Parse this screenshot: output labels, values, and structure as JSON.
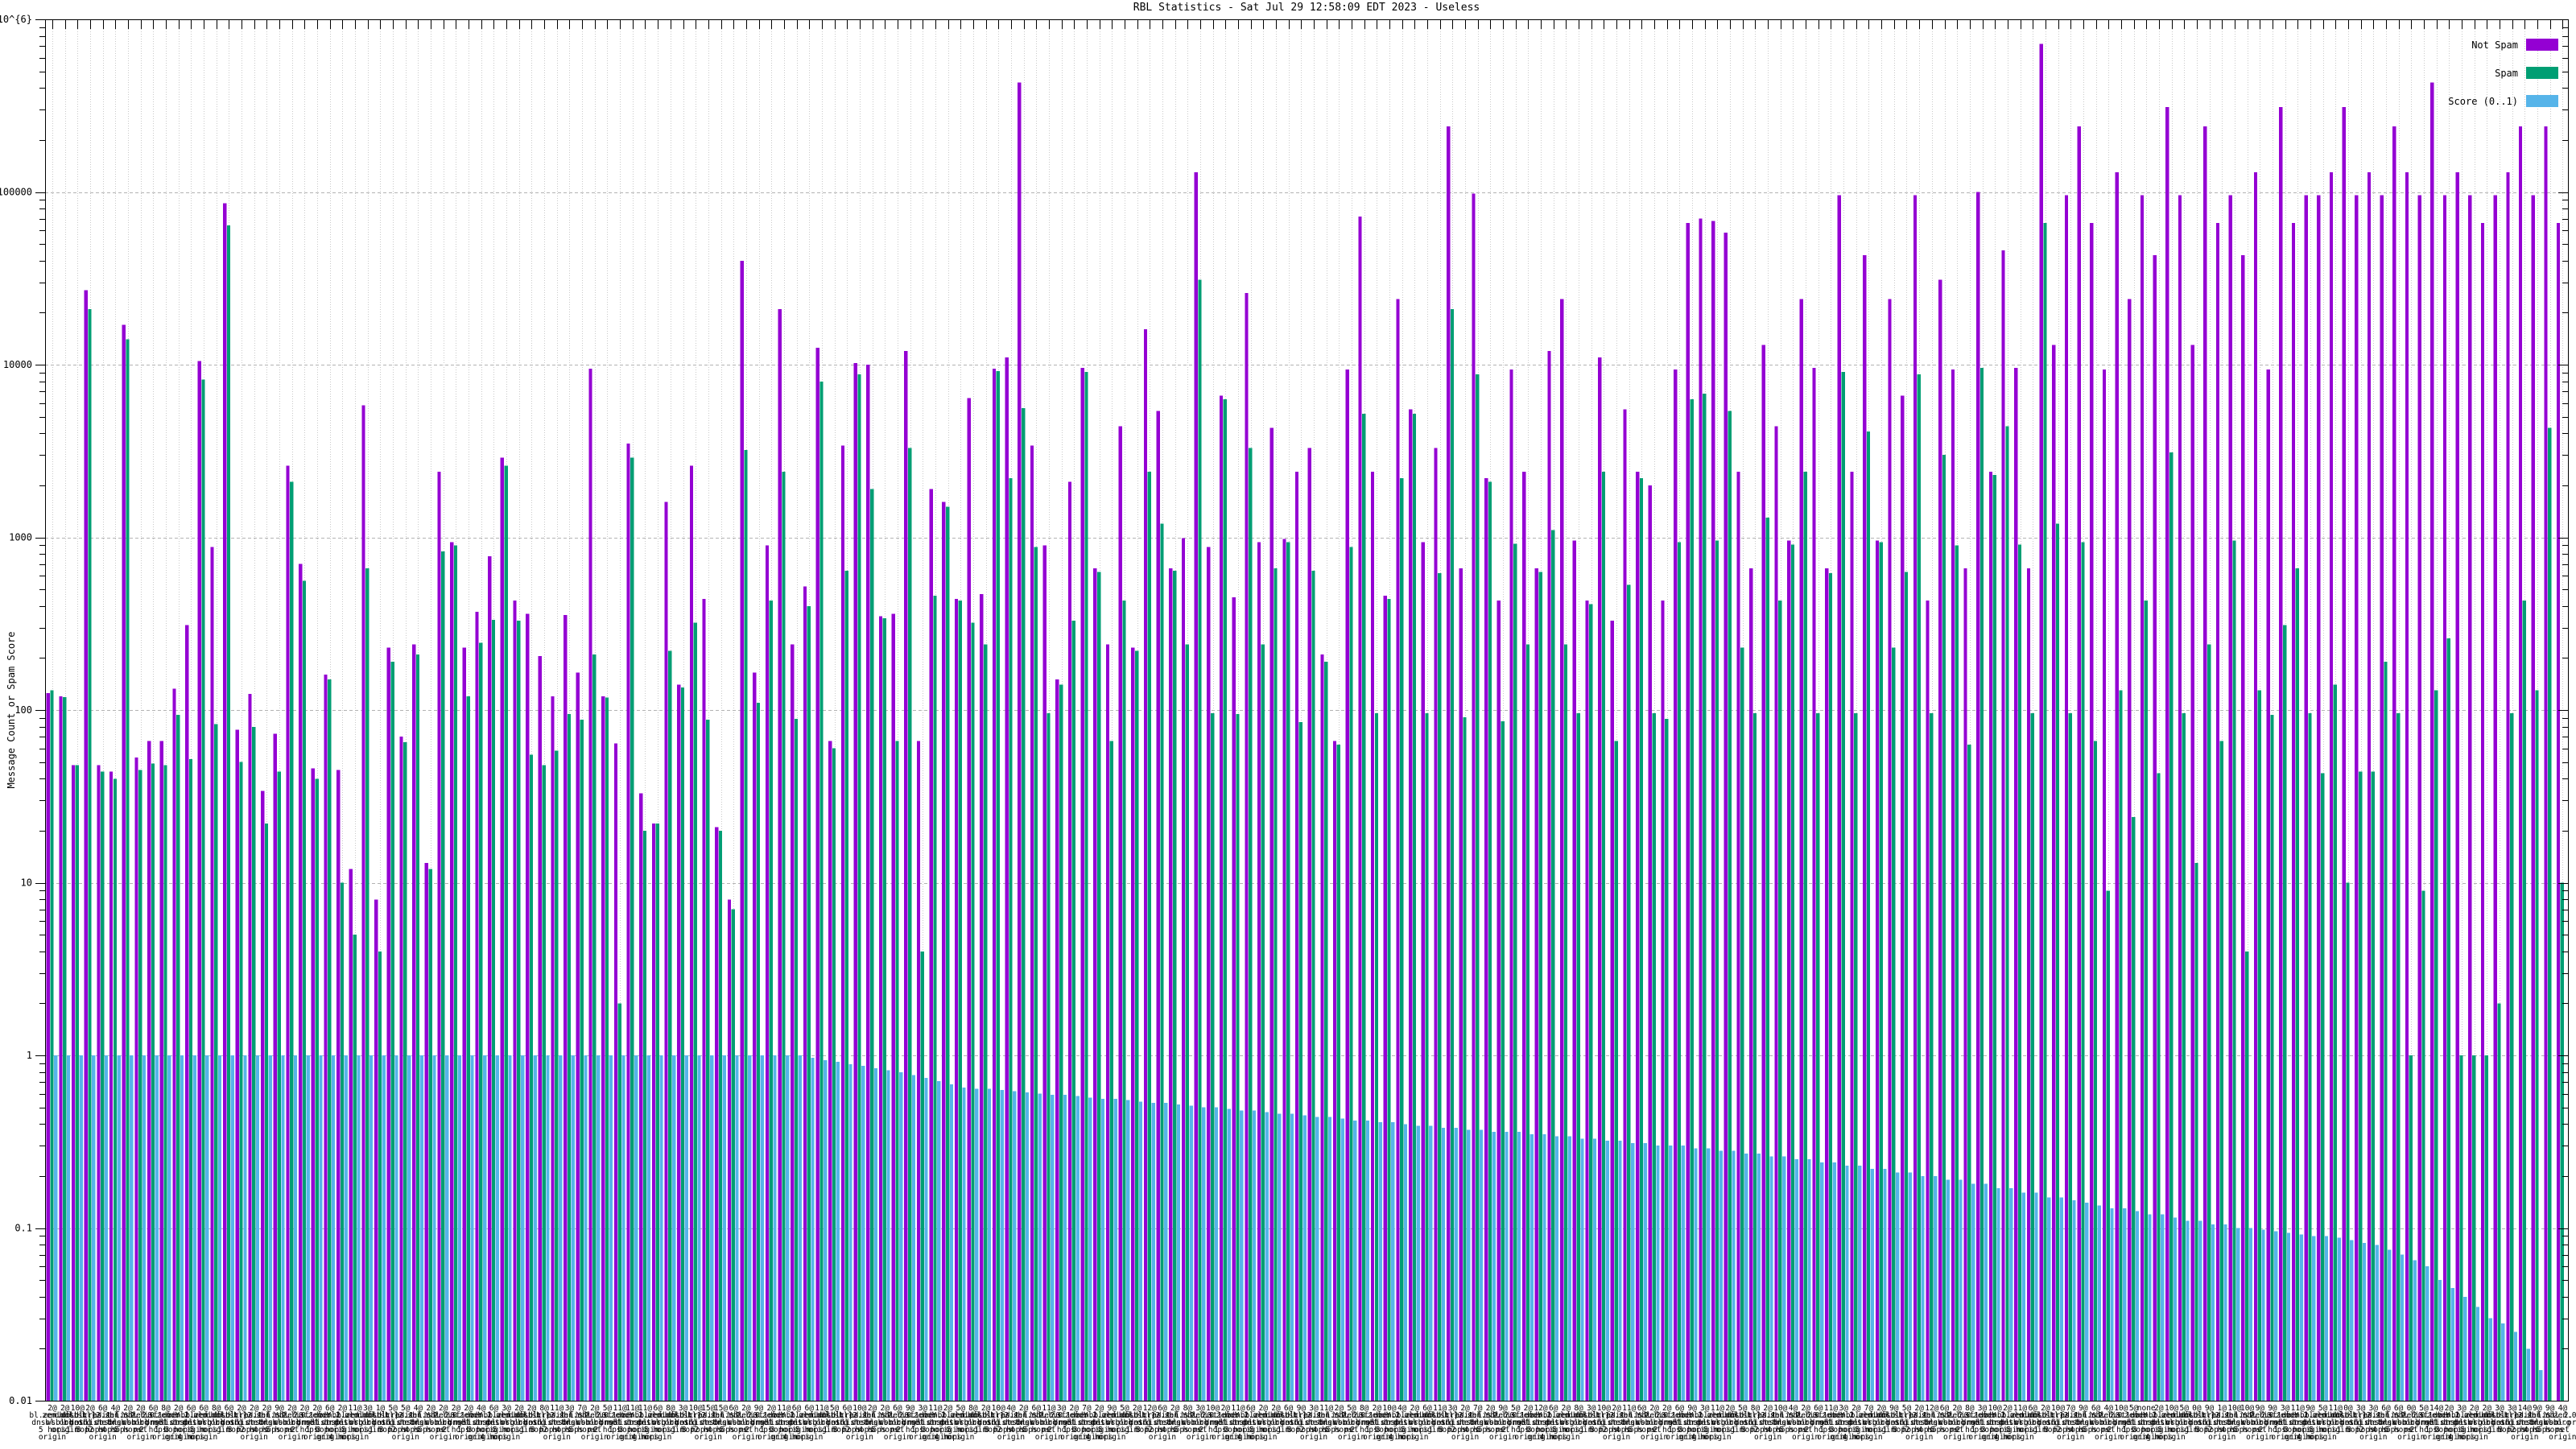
{
  "title": "RBL Statistics - Sat Jul 29 12:58:09 EDT 2023 - Useless",
  "y_axis": {
    "label": "Message Count or Spam Score"
  },
  "legend": {
    "items": [
      {
        "label": "Not Spam",
        "color": "#9400d3"
      },
      {
        "label": "Spam",
        "color": "#009e73"
      },
      {
        "label": "Score (0..1)",
        "color": "#56b4e9"
      }
    ]
  },
  "chart_data": {
    "type": "bar",
    "title": "RBL Statistics - Sat Jul 29 12:58:09 EDT 2023 - Useless",
    "xlabel": "",
    "ylabel": "Message Count or Spam Score",
    "yscale": "log",
    "ylim": [
      0.01,
      1000000
    ],
    "grid": true,
    "legend_position": "top-right inside",
    "y_ticks": [
      {
        "label": "1x10^{6}",
        "value": 1000000
      },
      {
        "label": "100000",
        "value": 100000
      },
      {
        "label": "10000",
        "value": 10000
      },
      {
        "label": "1000",
        "value": 1000
      },
      {
        "label": "100",
        "value": 100
      },
      {
        "label": "10",
        "value": 10
      },
      {
        "label": "1",
        "value": 1
      },
      {
        "label": "0.1",
        "value": 0.1
      },
      {
        "label": "0.01",
        "value": 0.01
      }
    ],
    "series": [
      {
        "name": "Not Spam",
        "color": "#9400d3",
        "values": [
          125,
          120,
          48,
          27000,
          48,
          44,
          17000,
          53,
          66,
          66,
          133,
          310,
          10500,
          880,
          86000,
          77,
          124,
          34,
          73,
          2600,
          700,
          46,
          160,
          45,
          12,
          5800,
          8,
          230,
          70,
          240,
          13,
          2400,
          940,
          230,
          370,
          775,
          2900,
          430,
          360,
          205,
          120,
          355,
          165,
          9500,
          120,
          64,
          3500,
          33,
          22,
          1600,
          140,
          2600,
          440,
          21,
          8,
          40000,
          165,
          900,
          21000,
          240,
          520,
          12500,
          66,
          3400,
          10200,
          10000,
          350,
          360,
          12000,
          66,
          1900,
          1600,
          440,
          6400,
          470,
          9500,
          11000,
          430000,
          3400,
          900,
          150,
          2100,
          9600,
          660,
          240,
          4400,
          230,
          16000,
          5400,
          660,
          990,
          130000,
          880,
          6600,
          450,
          26000,
          940,
          4300,
          980,
          2400,
          3300,
          210,
          66,
          9400,
          72000,
          2400,
          460,
          24000,
          5500,
          940,
          3300,
          240000,
          660,
          98000,
          2200,
          430,
          9400,
          2400,
          660,
          12000,
          24000,
          960,
          430,
          11000,
          330,
          5500,
          2400,
          2000,
          430,
          9400,
          66000,
          70000,
          68000,
          58000,
          2400,
          660,
          13000,
          4400,
          960,
          24000,
          9600,
          660,
          96000,
          2400,
          43000,
          960,
          24000,
          6600,
          96000,
          430,
          31000,
          9400,
          660,
          100000,
          2400,
          46000,
          9600,
          660,
          720000,
          13000,
          96000,
          240000,
          66000,
          9400,
          130000,
          24000,
          96000,
          43000,
          310000,
          96000,
          13000,
          240000,
          66000,
          96000,
          43000,
          130000,
          9400,
          310000,
          66000,
          96000,
          96000,
          130000,
          310000,
          96000,
          130000,
          96000,
          240000,
          130000,
          96000,
          430000,
          96000,
          130000,
          96000,
          66000,
          96000,
          130000,
          240000,
          96000,
          240000,
          66000
        ]
      },
      {
        "name": "Spam",
        "color": "#009e73",
        "values": [
          130,
          119,
          48,
          21000,
          44,
          40,
          14000,
          45,
          49,
          48,
          94,
          52,
          8200,
          83,
          64000,
          50,
          80,
          22,
          44,
          2100,
          560,
          40,
          150,
          10,
          5,
          660,
          4,
          190,
          65,
          210,
          12,
          830,
          900,
          120,
          245,
          333,
          2600,
          330,
          55,
          48,
          58,
          95,
          88,
          210,
          118,
          2,
          2900,
          20,
          22,
          220,
          135,
          320,
          88,
          20,
          7,
          3200,
          110,
          430,
          2400,
          89,
          400,
          8000,
          60,
          640,
          8800,
          1900,
          340,
          66,
          3300,
          4,
          460,
          1500,
          430,
          320,
          240,
          9200,
          2200,
          5600,
          880,
          96,
          140,
          330,
          9100,
          630,
          66,
          430,
          220,
          2400,
          1200,
          640,
          240,
          31000,
          96,
          6300,
          95,
          3300,
          240,
          660,
          940,
          85,
          640,
          190,
          63,
          880,
          5200,
          96,
          440,
          2200,
          5200,
          96,
          620,
          21000,
          91,
          8800,
          2100,
          86,
          920,
          240,
          630,
          1100,
          240,
          96,
          410,
          2400,
          66,
          530,
          2200,
          96,
          89,
          940,
          6300,
          6800,
          960,
          5400,
          230,
          96,
          1300,
          430,
          910,
          2400,
          96,
          620,
          9100,
          96,
          4100,
          940,
          230,
          630,
          8800,
          96,
          3000,
          900,
          63,
          9600,
          2300,
          4400,
          910,
          96,
          66000,
          1200,
          96,
          940,
          66,
          9,
          130,
          24,
          430,
          43,
          3100,
          96,
          13,
          240,
          66,
          960,
          4,
          130,
          94,
          310,
          660,
          96,
          43,
          140,
          10,
          44,
          44,
          190,
          96,
          1,
          9,
          130,
          260,
          1,
          1,
          1,
          2,
          96,
          430,
          130,
          4300,
          10
        ]
      },
      {
        "name": "Score (0..1)",
        "color": "#56b4e9",
        "values": [
          1,
          1,
          1,
          1,
          1,
          1,
          1,
          1,
          1,
          1,
          1,
          1,
          1,
          1,
          1,
          1,
          1,
          1,
          1,
          1,
          1,
          1,
          1,
          1,
          1,
          1,
          1,
          1,
          1,
          1,
          1,
          1,
          1,
          1,
          1,
          1,
          1,
          1,
          1,
          1,
          1,
          1,
          1,
          1,
          1,
          1,
          1,
          1,
          1,
          1,
          1,
          1,
          1,
          1,
          1,
          1,
          1,
          1,
          1,
          1,
          0.97,
          0.94,
          0.92,
          0.89,
          0.87,
          0.84,
          0.82,
          0.8,
          0.77,
          0.74,
          0.71,
          0.68,
          0.65,
          0.64,
          0.64,
          0.63,
          0.62,
          0.61,
          0.6,
          0.59,
          0.59,
          0.58,
          0.57,
          0.56,
          0.56,
          0.55,
          0.54,
          0.53,
          0.53,
          0.52,
          0.51,
          0.5,
          0.5,
          0.49,
          0.48,
          0.48,
          0.47,
          0.46,
          0.46,
          0.45,
          0.44,
          0.44,
          0.43,
          0.42,
          0.42,
          0.41,
          0.41,
          0.4,
          0.39,
          0.39,
          0.38,
          0.38,
          0.37,
          0.37,
          0.36,
          0.36,
          0.36,
          0.35,
          0.35,
          0.34,
          0.34,
          0.33,
          0.33,
          0.32,
          0.32,
          0.31,
          0.31,
          0.3,
          0.3,
          0.3,
          0.29,
          0.29,
          0.28,
          0.28,
          0.27,
          0.27,
          0.26,
          0.26,
          0.25,
          0.25,
          0.24,
          0.24,
          0.23,
          0.23,
          0.22,
          0.22,
          0.21,
          0.21,
          0.2,
          0.2,
          0.19,
          0.19,
          0.18,
          0.18,
          0.17,
          0.17,
          0.16,
          0.16,
          0.15,
          0.15,
          0.145,
          0.14,
          0.135,
          0.13,
          0.13,
          0.125,
          0.12,
          0.12,
          0.115,
          0.11,
          0.11,
          0.105,
          0.105,
          0.1,
          0.1,
          0.098,
          0.096,
          0.094,
          0.092,
          0.09,
          0.09,
          0.088,
          0.085,
          0.082,
          0.08,
          0.075,
          0.07,
          0.065,
          0.06,
          0.05,
          0.045,
          0.04,
          0.035,
          0.03,
          0.028,
          0.025,
          0.02,
          0.015,
          0.01,
          0.01
        ]
      },
      {
        "name": null,
        "color": null,
        "values": []
      }
    ],
    "x_label_format": "{prefix}\n{zone}\n{suffix}",
    "x_tick_count_prefixes": [
      "2@",
      "2@",
      "10@",
      "2@",
      "6@",
      "4@",
      "2@",
      "2@",
      "6@",
      "8@",
      "2@",
      "6@",
      "6@",
      "8@",
      "6@",
      "2@",
      "2@",
      "2@",
      "9@",
      "2@",
      "2@",
      "2@",
      "6@",
      "2@",
      "11@",
      "3@",
      "1@",
      "5@",
      "5@",
      "4@",
      "2@",
      "2@",
      "2@",
      "2@",
      "4@",
      "6@",
      "3@",
      "2@",
      "2@",
      "8@",
      "11@",
      "3@",
      "7@",
      "2@",
      "5@",
      "11@",
      "11@",
      "11@",
      "6@",
      "8@",
      "3@",
      "10@",
      "15@",
      "15@",
      "6@",
      "2@",
      "9@",
      "2@",
      "11@",
      "6@",
      "6@",
      "11@",
      "5@",
      "6@",
      "10@",
      "2@",
      "2@",
      "6@",
      "9@",
      "3@",
      "11@",
      "2@",
      "5@",
      "8@",
      "2@",
      "10@",
      "4@",
      "2@",
      "6@",
      "11@",
      "3@",
      "2@",
      "7@",
      "2@",
      "9@",
      "5@",
      "2@",
      "12@",
      "6@",
      "2@",
      "8@",
      "3@",
      "10@",
      "2@",
      "11@",
      "6@",
      "2@",
      "2@",
      "6@",
      "9@",
      "3@",
      "11@",
      "2@",
      "5@",
      "8@",
      "2@",
      "10@",
      "4@",
      "2@",
      "6@",
      "11@",
      "3@",
      "2@",
      "7@",
      "2@",
      "9@",
      "5@",
      "2@",
      "12@",
      "6@",
      "2@",
      "8@",
      "3@",
      "10@",
      "2@",
      "11@",
      "6@",
      "2@",
      "2@",
      "6@",
      "9@",
      "3@",
      "11@",
      "2@",
      "5@",
      "8@",
      "2@",
      "10@",
      "4@",
      "2@",
      "6@",
      "11@",
      "3@",
      "2@",
      "7@",
      "2@",
      "9@",
      "5@",
      "2@",
      "12@",
      "6@",
      "2@",
      "8@",
      "3@",
      "10@",
      "2@",
      "11@",
      "6@",
      "2@",
      "10@",
      "7@",
      "9@",
      "6@",
      "4@",
      "10@",
      "5@",
      "none",
      "2@",
      "10@",
      "5@",
      "0@",
      "9@",
      "1@",
      "10@",
      "10@",
      "9@",
      "9@",
      "3@",
      "11@",
      "9@",
      "5@",
      "11@",
      "0@",
      "3@",
      "3@",
      "6@",
      "6@",
      "0@",
      "5@",
      "14@",
      "2@",
      "3@",
      "2@",
      "2@",
      "3@",
      "3@",
      "14@",
      "9@",
      "9@",
      "4@"
    ],
    "x_tick_zone_fragments": [
      "bl.zen.db.\ndnsbl.org",
      "zen.dnsbl.\nwsbl.net",
      "db.list.1.\nbl.org",
      "old.credit.\ndnsbl.net",
      "bl-2.zen.\nlist.org",
      "ps.1.list.\ndnsbl.com",
      "sbl.ubl.2.\ndnsbl.org",
      "Y.zen.0.\nwsbl.org",
      "2.list.db.\nbl.net",
      "0.zen.Y.\ndnsbl.org",
      "1.zen.bl.\nlist.net",
      "db.2.old.\ndnsbl.org"
    ],
    "x_tick_hop_suffixes": [
      "5 hops\norigin",
      "origin",
      "1 hop",
      "3 hops",
      "2 hops\norigin",
      "4 hops",
      "5 hops",
      "net\norigin",
      "2 hops",
      "1 hop\norigin",
      "3 hops\norigin",
      "origin\n4 hops"
    ]
  }
}
